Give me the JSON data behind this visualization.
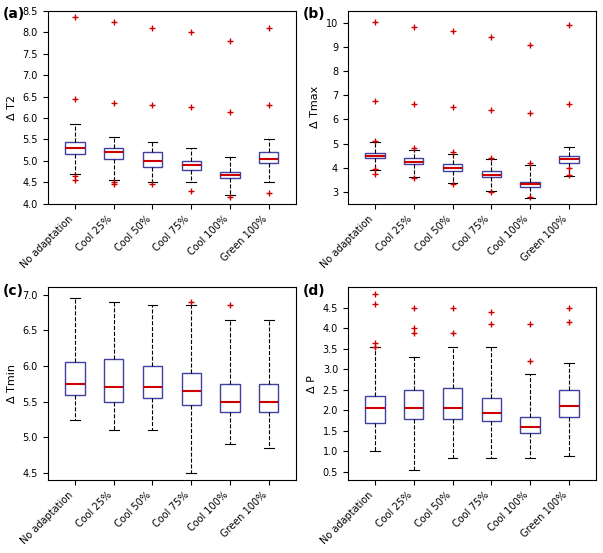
{
  "categories": [
    "No adaptation",
    "Cool 25%",
    "Cool 50%",
    "Cool 75%",
    "Cool 100%",
    "Green 100%"
  ],
  "panel_labels": [
    "(a)",
    "(b)",
    "(c)",
    "(d)"
  ],
  "ylabels": [
    "Δ T2",
    "Δ Tmax",
    "Δ Tmin",
    "Δ P"
  ],
  "box_color": "#4040a0",
  "median_color": "#cc0000",
  "flier_color": "#cc0000",
  "whisker_color": "black",
  "plots": {
    "a": {
      "ylim": [
        4.0,
        8.5
      ],
      "yticks": [
        4.0,
        4.5,
        5.0,
        5.5,
        6.0,
        6.5,
        7.0,
        7.5,
        8.0,
        8.5
      ],
      "boxes": [
        {
          "q1": 5.15,
          "median": 5.3,
          "q3": 5.45,
          "whislo": 4.7,
          "whishi": 5.85,
          "fliers": [
            8.35,
            6.45,
            4.65,
            4.55
          ]
        },
        {
          "q1": 5.05,
          "median": 5.2,
          "q3": 5.3,
          "whislo": 4.55,
          "whishi": 5.55,
          "fliers": [
            8.25,
            6.35,
            4.5,
            4.45
          ]
        },
        {
          "q1": 4.85,
          "median": 5.0,
          "q3": 5.2,
          "whislo": 4.5,
          "whishi": 5.45,
          "fliers": [
            8.1,
            6.3,
            4.45
          ]
        },
        {
          "q1": 4.78,
          "median": 4.9,
          "q3": 5.0,
          "whislo": 4.5,
          "whishi": 5.3,
          "fliers": [
            8.0,
            6.25,
            4.3
          ]
        },
        {
          "q1": 4.6,
          "median": 4.68,
          "q3": 4.75,
          "whislo": 4.2,
          "whishi": 5.1,
          "fliers": [
            7.8,
            6.15,
            4.15
          ]
        },
        {
          "q1": 4.95,
          "median": 5.05,
          "q3": 5.2,
          "whislo": 4.5,
          "whishi": 5.5,
          "fliers": [
            8.1,
            6.3,
            4.25
          ]
        }
      ]
    },
    "b": {
      "ylim": [
        2.5,
        10.5
      ],
      "yticks": [
        3,
        4,
        5,
        6,
        7,
        8,
        9,
        10
      ],
      "boxes": [
        {
          "q1": 4.4,
          "median": 4.5,
          "q3": 4.6,
          "whislo": 3.9,
          "whishi": 5.05,
          "fliers": [
            10.05,
            6.75,
            5.1,
            3.95,
            3.75
          ]
        },
        {
          "q1": 4.15,
          "median": 4.25,
          "q3": 4.4,
          "whislo": 3.6,
          "whishi": 4.75,
          "fliers": [
            9.85,
            6.65,
            4.8,
            3.55
          ]
        },
        {
          "q1": 3.85,
          "median": 4.0,
          "q3": 4.15,
          "whislo": 3.35,
          "whishi": 4.55,
          "fliers": [
            9.65,
            6.5,
            4.65,
            3.3
          ]
        },
        {
          "q1": 3.6,
          "median": 3.7,
          "q3": 3.85,
          "whislo": 3.05,
          "whishi": 4.35,
          "fliers": [
            9.4,
            6.4,
            4.4,
            3.0
          ]
        },
        {
          "q1": 3.2,
          "median": 3.3,
          "q3": 3.4,
          "whislo": 2.75,
          "whishi": 4.1,
          "fliers": [
            9.1,
            6.25,
            4.2,
            2.8
          ]
        },
        {
          "q1": 4.2,
          "median": 4.35,
          "q3": 4.5,
          "whislo": 3.65,
          "whishi": 4.85,
          "fliers": [
            9.9,
            6.65,
            4.0,
            3.7
          ]
        }
      ]
    },
    "c": {
      "ylim": [
        4.4,
        7.1
      ],
      "yticks": [
        4.5,
        5.0,
        5.5,
        6.0,
        6.5,
        7.0
      ],
      "boxes": [
        {
          "q1": 5.6,
          "median": 5.75,
          "q3": 6.05,
          "whislo": 5.25,
          "whishi": 6.95,
          "fliers": []
        },
        {
          "q1": 5.5,
          "median": 5.7,
          "q3": 6.1,
          "whislo": 5.1,
          "whishi": 6.9,
          "fliers": []
        },
        {
          "q1": 5.55,
          "median": 5.7,
          "q3": 6.0,
          "whislo": 5.1,
          "whishi": 6.85,
          "fliers": []
        },
        {
          "q1": 5.45,
          "median": 5.65,
          "q3": 5.9,
          "whislo": 4.5,
          "whishi": 6.85,
          "fliers": [
            6.9
          ]
        },
        {
          "q1": 5.35,
          "median": 5.5,
          "q3": 5.75,
          "whislo": 4.9,
          "whishi": 6.65,
          "fliers": [
            6.85
          ]
        },
        {
          "q1": 5.35,
          "median": 5.5,
          "q3": 5.75,
          "whislo": 4.85,
          "whishi": 6.65,
          "fliers": []
        }
      ]
    },
    "d": {
      "ylim": [
        0.3,
        5.0
      ],
      "yticks": [
        0.5,
        1.0,
        1.5,
        2.0,
        2.5,
        3.0,
        3.5,
        4.0,
        4.5
      ],
      "boxes": [
        {
          "q1": 1.7,
          "median": 2.05,
          "q3": 2.35,
          "whislo": 1.0,
          "whishi": 3.55,
          "fliers": [
            4.85,
            4.6,
            3.65,
            3.55
          ]
        },
        {
          "q1": 1.8,
          "median": 2.05,
          "q3": 2.5,
          "whislo": 0.55,
          "whishi": 3.3,
          "fliers": [
            4.5,
            4.0,
            3.9
          ]
        },
        {
          "q1": 1.8,
          "median": 2.05,
          "q3": 2.55,
          "whislo": 0.85,
          "whishi": 3.55,
          "fliers": [
            4.5,
            3.9
          ]
        },
        {
          "q1": 1.75,
          "median": 1.95,
          "q3": 2.3,
          "whislo": 0.85,
          "whishi": 3.55,
          "fliers": [
            4.4,
            4.1
          ]
        },
        {
          "q1": 1.45,
          "median": 1.6,
          "q3": 1.85,
          "whislo": 0.85,
          "whishi": 2.9,
          "fliers": [
            4.1,
            3.2
          ]
        },
        {
          "q1": 1.85,
          "median": 2.1,
          "q3": 2.5,
          "whislo": 0.9,
          "whishi": 3.15,
          "fliers": [
            4.5,
            4.15
          ]
        }
      ]
    }
  }
}
